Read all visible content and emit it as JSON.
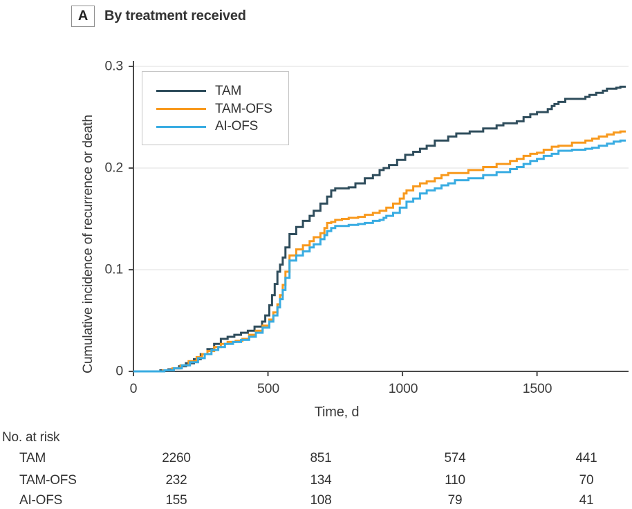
{
  "panel": {
    "label": "A",
    "title": "By treatment received"
  },
  "axis": {
    "x_tick_labels": [
      "0",
      "500",
      "1000",
      "1500"
    ],
    "y_tick_labels": [
      "0",
      "0.1",
      "0.2",
      "0.3"
    ],
    "xlabel": "Time, d",
    "ylabel": "Cumulative incidence of recurrence or death"
  },
  "colors": {
    "tam": "#2F4D5C",
    "tam_ofs": "#F8991D",
    "ai_ofs": "#39ACE2",
    "axis": "#4a4a4a",
    "grid": "#e5e5e5"
  },
  "chart_data": {
    "type": "line",
    "subtype": "step-after",
    "title": "By treatment received",
    "xlabel": "Time, d",
    "ylabel": "Cumulative incidence of recurrence or death",
    "xlim": [
      0,
      1830
    ],
    "ylim": [
      0,
      0.3
    ],
    "xticks": [
      0,
      500,
      1000,
      1500
    ],
    "yticks": [
      0,
      0.1,
      0.2,
      0.3
    ],
    "grid": "horizontal gridlines at 0.1, 0.2, 0.3 (light gray)",
    "legend_position": "upper-left inside plot",
    "series": [
      {
        "name": "TAM",
        "color": "#2F4D5C",
        "points": [
          [
            0,
            0
          ],
          [
            100,
            0.001
          ],
          [
            130,
            0.002
          ],
          [
            150,
            0.003
          ],
          [
            170,
            0.005
          ],
          [
            195,
            0.008
          ],
          [
            225,
            0.012
          ],
          [
            250,
            0.017
          ],
          [
            275,
            0.022
          ],
          [
            300,
            0.027
          ],
          [
            325,
            0.032
          ],
          [
            350,
            0.034
          ],
          [
            375,
            0.036
          ],
          [
            400,
            0.038
          ],
          [
            425,
            0.04
          ],
          [
            450,
            0.044
          ],
          [
            478,
            0.049
          ],
          [
            490,
            0.055
          ],
          [
            505,
            0.065
          ],
          [
            515,
            0.075
          ],
          [
            525,
            0.086
          ],
          [
            535,
            0.098
          ],
          [
            545,
            0.105
          ],
          [
            555,
            0.112
          ],
          [
            565,
            0.122
          ],
          [
            580,
            0.135
          ],
          [
            605,
            0.142
          ],
          [
            630,
            0.148
          ],
          [
            655,
            0.153
          ],
          [
            670,
            0.158
          ],
          [
            695,
            0.165
          ],
          [
            720,
            0.172
          ],
          [
            735,
            0.178
          ],
          [
            750,
            0.18
          ],
          [
            800,
            0.181
          ],
          [
            825,
            0.185
          ],
          [
            860,
            0.19
          ],
          [
            890,
            0.193
          ],
          [
            915,
            0.198
          ],
          [
            930,
            0.2
          ],
          [
            950,
            0.203
          ],
          [
            980,
            0.208
          ],
          [
            1010,
            0.213
          ],
          [
            1040,
            0.216
          ],
          [
            1065,
            0.219
          ],
          [
            1090,
            0.222
          ],
          [
            1120,
            0.227
          ],
          [
            1170,
            0.231
          ],
          [
            1200,
            0.234
          ],
          [
            1250,
            0.236
          ],
          [
            1300,
            0.239
          ],
          [
            1350,
            0.242
          ],
          [
            1375,
            0.244
          ],
          [
            1425,
            0.246
          ],
          [
            1450,
            0.25
          ],
          [
            1475,
            0.253
          ],
          [
            1500,
            0.255
          ],
          [
            1540,
            0.258
          ],
          [
            1555,
            0.261
          ],
          [
            1565,
            0.263
          ],
          [
            1580,
            0.265
          ],
          [
            1605,
            0.268
          ],
          [
            1680,
            0.27
          ],
          [
            1695,
            0.272
          ],
          [
            1720,
            0.274
          ],
          [
            1745,
            0.276
          ],
          [
            1760,
            0.278
          ],
          [
            1795,
            0.279
          ],
          [
            1810,
            0.28
          ],
          [
            1830,
            0.28
          ]
        ]
      },
      {
        "name": "TAM-OFS",
        "color": "#F8991D",
        "points": [
          [
            0,
            0
          ],
          [
            110,
            0.001
          ],
          [
            145,
            0.003
          ],
          [
            175,
            0.006
          ],
          [
            205,
            0.01
          ],
          [
            235,
            0.014
          ],
          [
            255,
            0.017
          ],
          [
            275,
            0.02
          ],
          [
            300,
            0.024
          ],
          [
            325,
            0.027
          ],
          [
            350,
            0.029
          ],
          [
            380,
            0.03
          ],
          [
            405,
            0.032
          ],
          [
            430,
            0.036
          ],
          [
            455,
            0.04
          ],
          [
            480,
            0.045
          ],
          [
            505,
            0.051
          ],
          [
            520,
            0.058
          ],
          [
            535,
            0.066
          ],
          [
            545,
            0.075
          ],
          [
            555,
            0.085
          ],
          [
            565,
            0.098
          ],
          [
            580,
            0.114
          ],
          [
            605,
            0.12
          ],
          [
            630,
            0.124
          ],
          [
            655,
            0.128
          ],
          [
            670,
            0.132
          ],
          [
            695,
            0.136
          ],
          [
            710,
            0.141
          ],
          [
            720,
            0.146
          ],
          [
            735,
            0.147
          ],
          [
            750,
            0.149
          ],
          [
            775,
            0.15
          ],
          [
            800,
            0.151
          ],
          [
            835,
            0.152
          ],
          [
            860,
            0.154
          ],
          [
            890,
            0.156
          ],
          [
            915,
            0.158
          ],
          [
            940,
            0.161
          ],
          [
            965,
            0.165
          ],
          [
            990,
            0.17
          ],
          [
            1005,
            0.175
          ],
          [
            1015,
            0.178
          ],
          [
            1040,
            0.182
          ],
          [
            1065,
            0.185
          ],
          [
            1090,
            0.187
          ],
          [
            1120,
            0.19
          ],
          [
            1145,
            0.193
          ],
          [
            1170,
            0.195
          ],
          [
            1245,
            0.198
          ],
          [
            1300,
            0.201
          ],
          [
            1350,
            0.204
          ],
          [
            1400,
            0.207
          ],
          [
            1425,
            0.209
          ],
          [
            1450,
            0.212
          ],
          [
            1475,
            0.214
          ],
          [
            1500,
            0.215
          ],
          [
            1525,
            0.218
          ],
          [
            1555,
            0.221
          ],
          [
            1580,
            0.222
          ],
          [
            1630,
            0.225
          ],
          [
            1680,
            0.227
          ],
          [
            1705,
            0.229
          ],
          [
            1730,
            0.231
          ],
          [
            1760,
            0.233
          ],
          [
            1785,
            0.235
          ],
          [
            1810,
            0.236
          ],
          [
            1830,
            0.236
          ]
        ]
      },
      {
        "name": "AI-OFS",
        "color": "#39ACE2",
        "points": [
          [
            0,
            0
          ],
          [
            115,
            0.001
          ],
          [
            150,
            0.003
          ],
          [
            180,
            0.006
          ],
          [
            210,
            0.009
          ],
          [
            240,
            0.013
          ],
          [
            265,
            0.017
          ],
          [
            290,
            0.021
          ],
          [
            315,
            0.024
          ],
          [
            340,
            0.027
          ],
          [
            370,
            0.029
          ],
          [
            400,
            0.031
          ],
          [
            430,
            0.034
          ],
          [
            455,
            0.038
          ],
          [
            480,
            0.043
          ],
          [
            505,
            0.049
          ],
          [
            520,
            0.055
          ],
          [
            535,
            0.063
          ],
          [
            545,
            0.071
          ],
          [
            555,
            0.08
          ],
          [
            565,
            0.092
          ],
          [
            580,
            0.109
          ],
          [
            605,
            0.114
          ],
          [
            630,
            0.118
          ],
          [
            655,
            0.122
          ],
          [
            670,
            0.125
          ],
          [
            695,
            0.13
          ],
          [
            710,
            0.134
          ],
          [
            720,
            0.138
          ],
          [
            735,
            0.141
          ],
          [
            750,
            0.143
          ],
          [
            800,
            0.144
          ],
          [
            835,
            0.145
          ],
          [
            860,
            0.146
          ],
          [
            890,
            0.148
          ],
          [
            915,
            0.149
          ],
          [
            930,
            0.151
          ],
          [
            940,
            0.153
          ],
          [
            965,
            0.156
          ],
          [
            990,
            0.161
          ],
          [
            1015,
            0.167
          ],
          [
            1040,
            0.17
          ],
          [
            1065,
            0.175
          ],
          [
            1090,
            0.178
          ],
          [
            1120,
            0.18
          ],
          [
            1145,
            0.183
          ],
          [
            1170,
            0.185
          ],
          [
            1195,
            0.188
          ],
          [
            1245,
            0.19
          ],
          [
            1300,
            0.193
          ],
          [
            1350,
            0.196
          ],
          [
            1400,
            0.199
          ],
          [
            1425,
            0.201
          ],
          [
            1450,
            0.204
          ],
          [
            1475,
            0.207
          ],
          [
            1500,
            0.209
          ],
          [
            1525,
            0.212
          ],
          [
            1555,
            0.214
          ],
          [
            1580,
            0.217
          ],
          [
            1630,
            0.218
          ],
          [
            1680,
            0.219
          ],
          [
            1705,
            0.22
          ],
          [
            1730,
            0.222
          ],
          [
            1760,
            0.224
          ],
          [
            1785,
            0.226
          ],
          [
            1810,
            0.227
          ],
          [
            1830,
            0.227
          ]
        ]
      }
    ]
  },
  "risk_table": {
    "header": "No. at risk",
    "times": [
      0,
      500,
      1000,
      1500
    ],
    "rows": [
      {
        "label": "TAM",
        "values": [
          "2260",
          "851",
          "574",
          "441"
        ]
      },
      {
        "label": "TAM-OFS",
        "values": [
          "232",
          "134",
          "110",
          "70"
        ]
      },
      {
        "label": "AI-OFS",
        "values": [
          "155",
          "108",
          "79",
          "41"
        ]
      }
    ]
  }
}
